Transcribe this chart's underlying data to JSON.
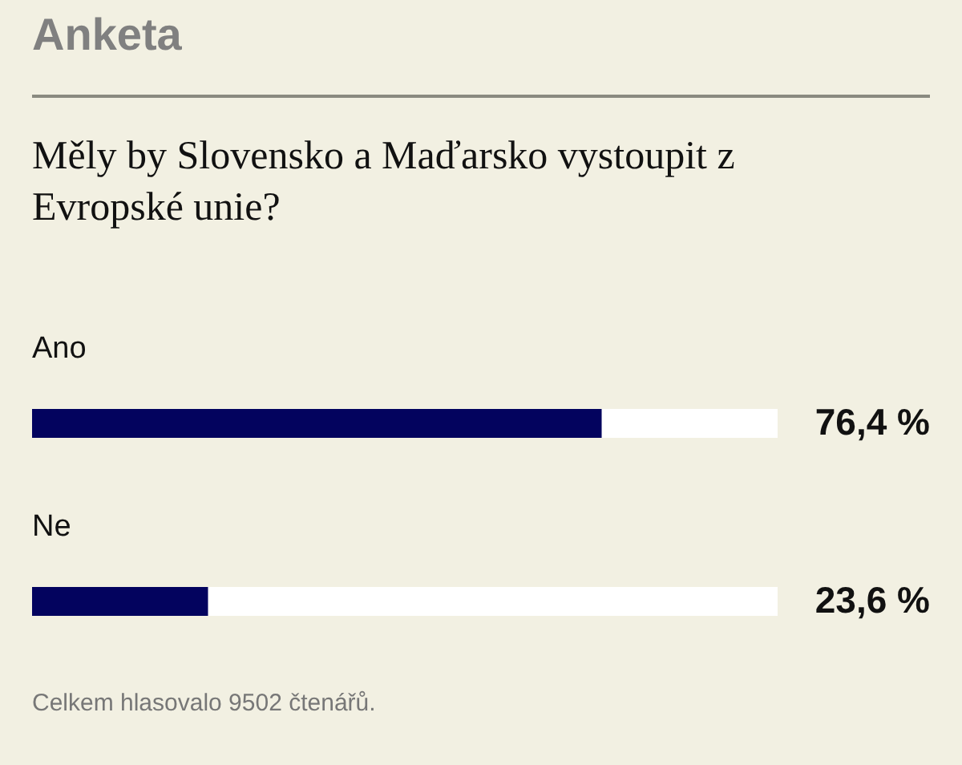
{
  "chart_data": {
    "type": "bar",
    "orientation": "horizontal",
    "title": "Anketa",
    "subtitle": "Měly by Slovensko a Maďarsko vystoupit z Evropské unie?",
    "categories": [
      "Ano",
      "Ne"
    ],
    "values": [
      76.4,
      23.6
    ],
    "color": "#03035e",
    "value_labels": [
      "76,4 %",
      "23,6 %"
    ],
    "xlim": [
      0,
      100
    ],
    "tick_labels": false,
    "annotations": [
      "Celkem hlasovalo 9502 čtenářů."
    ]
  }
}
